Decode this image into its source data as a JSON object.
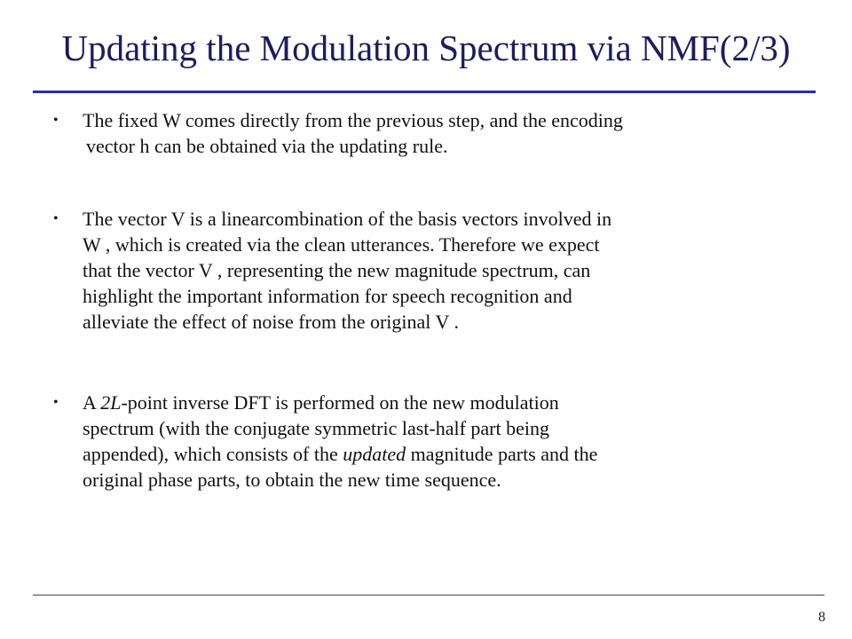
{
  "slide": {
    "title": "Updating the Modulation Spectrum via NMF(2/3)",
    "page_number": "8"
  },
  "bullets": [
    {
      "marker": "•",
      "lines": [
        "The fixed W comes directly from the previous step, and the encoding",
        "vector h can be obtained via the updating rule."
      ]
    },
    {
      "marker": "•",
      "lines": [
        "The vector V  is a linearcombination of the basis vectors involved in",
        "W , which is created via the clean utterances. Therefore we expect",
        "that the vector V  , representing the new magnitude spectrum, can",
        "highlight the important information for speech recognition and",
        "alleviate the effect of noise from the original V ."
      ]
    },
    {
      "marker": "•",
      "line1_prefix": "A ",
      "line1_italic_num": "2",
      "line1_italic_var": "L",
      "line1_suffix": "-point inverse DFT is performed on the new modulation",
      "line2": "spectrum (with the conjugate symmetric last-half part being",
      "line3_prefix": "appended), which consists of the ",
      "line3_italic": "updated",
      "line3_suffix": " magnitude parts and the",
      "line4": "original phase parts, to obtain the new time sequence."
    }
  ]
}
